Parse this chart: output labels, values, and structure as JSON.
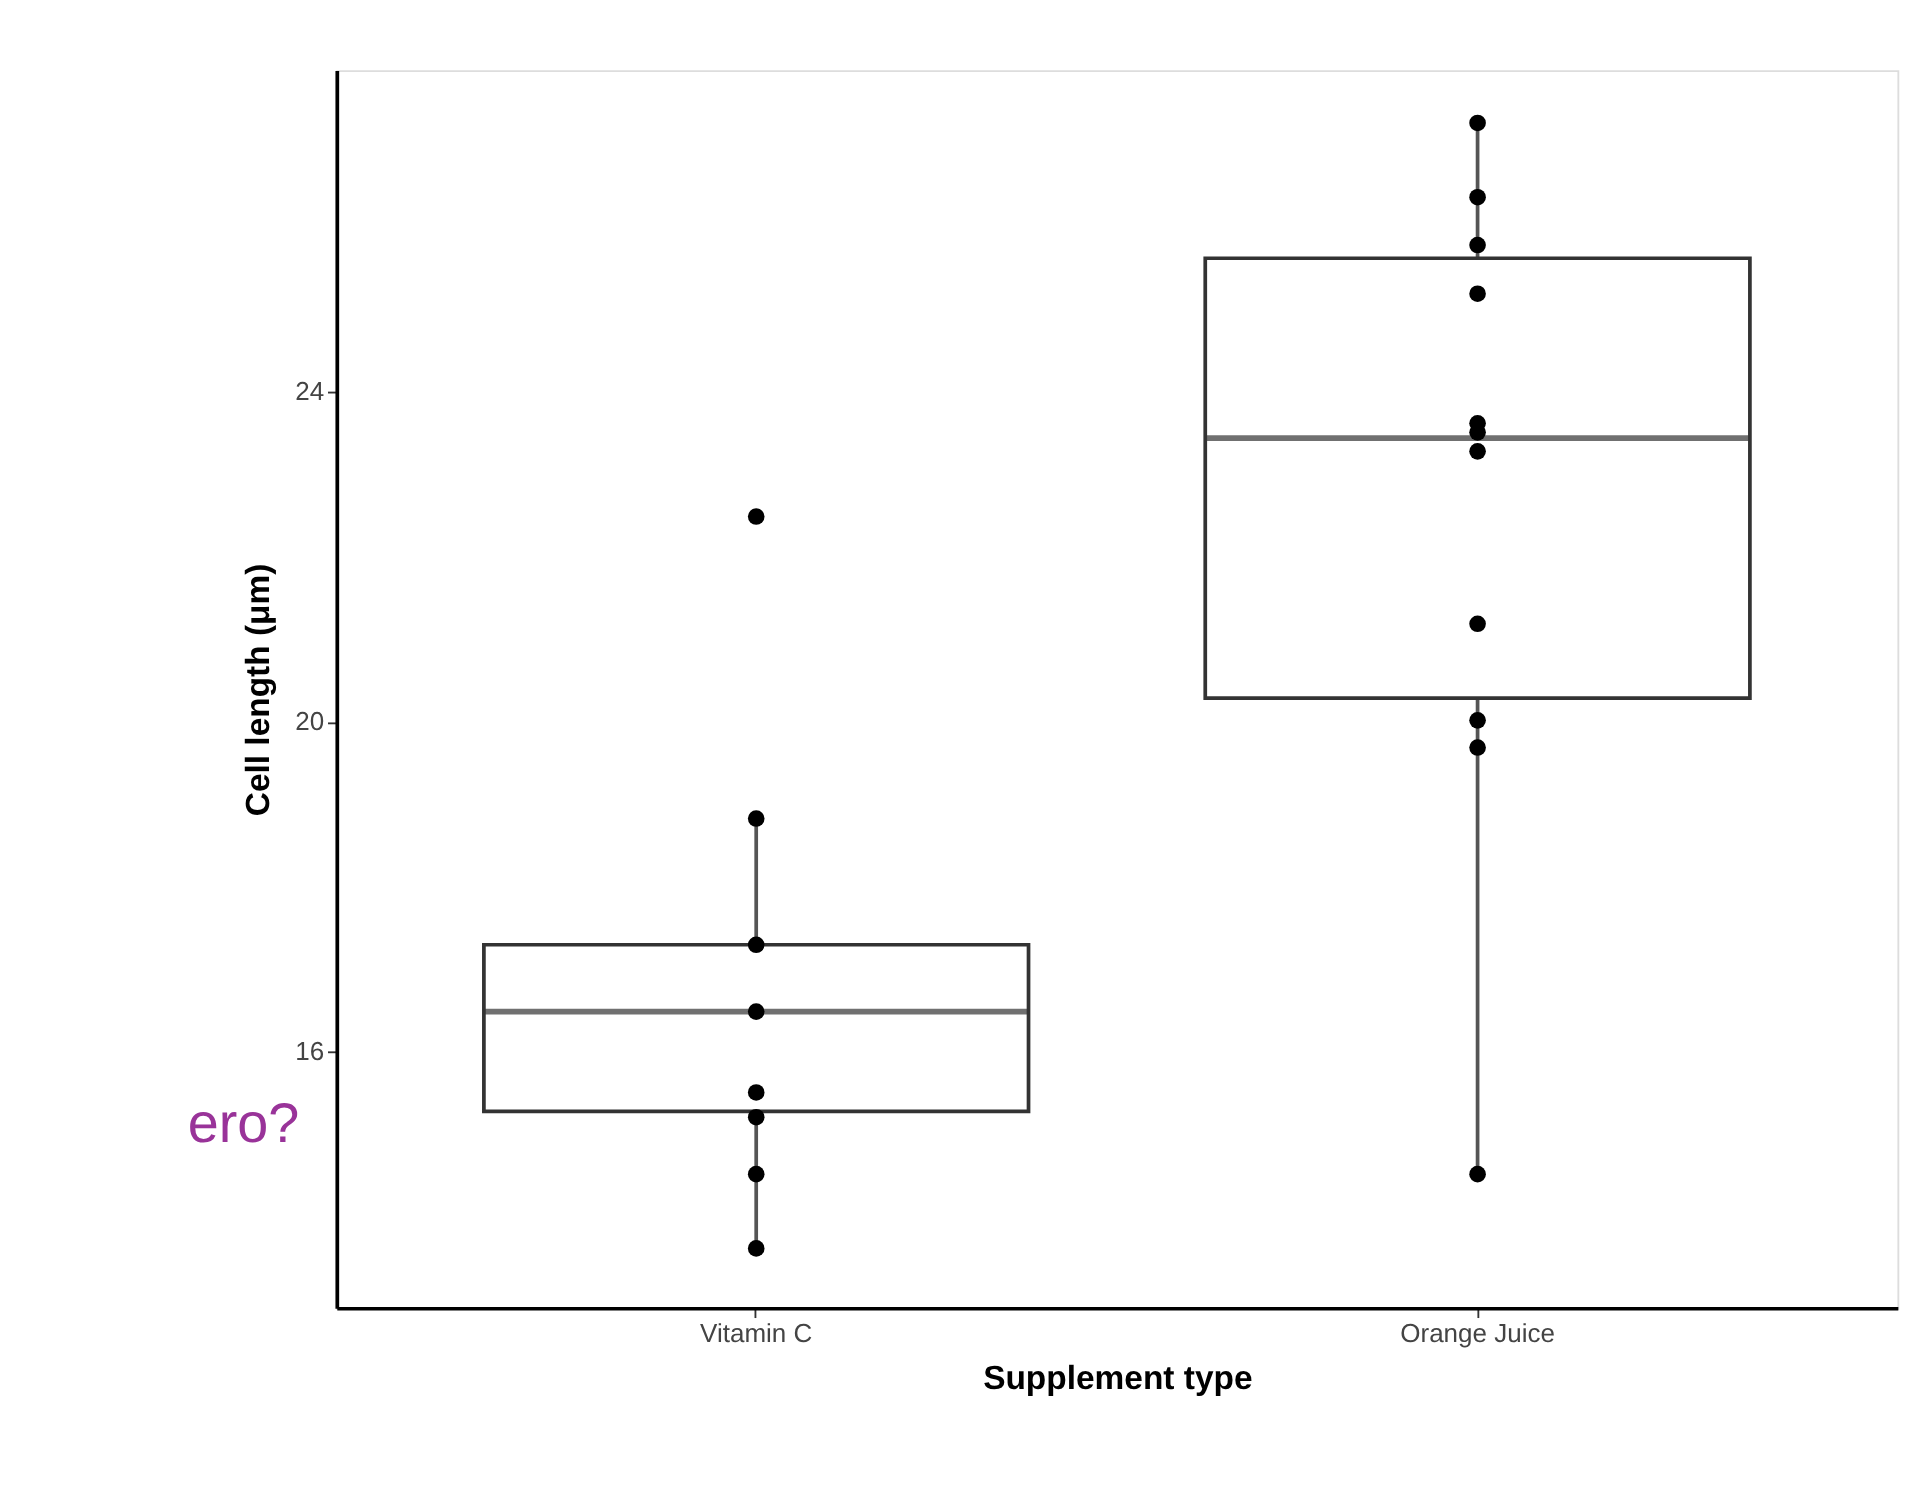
{
  "chart_data": {
    "type": "box",
    "xlabel": "Supplement type",
    "ylabel": "Cell length (μm)",
    "categories": [
      "Vitamin C",
      "Orange Juice"
    ],
    "boxes": [
      {
        "low": 13.62,
        "q1": 15.28,
        "median": 16.49,
        "q3": 17.3,
        "high": 18.83
      },
      {
        "low": 14.52,
        "q1": 20.29,
        "median": 23.44,
        "q3": 25.62,
        "high": 27.26
      }
    ],
    "series": [
      {
        "type": "scatter",
        "color": "#000000",
        "x": [
          "Vitamin C",
          "Vitamin C",
          "Vitamin C",
          "Vitamin C",
          "Vitamin C",
          "Vitamin C",
          "Vitamin C",
          "Vitamin C",
          "Orange Juice",
          "Orange Juice",
          "Orange Juice",
          "Orange Juice",
          "Orange Juice",
          "Orange Juice",
          "Orange Juice",
          "Orange Juice",
          "Orange Juice",
          "Orange Juice",
          "Orange Juice"
        ],
        "values": [
          22.49,
          18.83,
          17.3,
          16.49,
          15.51,
          15.21,
          14.52,
          13.62,
          27.26,
          26.36,
          25.78,
          25.19,
          23.62,
          23.51,
          23.28,
          21.19,
          20.02,
          19.69,
          14.52
        ]
      }
    ],
    "ylim": [
      12.9,
      27.9
    ],
    "yticks": [
      16,
      20,
      24
    ],
    "annotations": [
      "ero?"
    ]
  }
}
